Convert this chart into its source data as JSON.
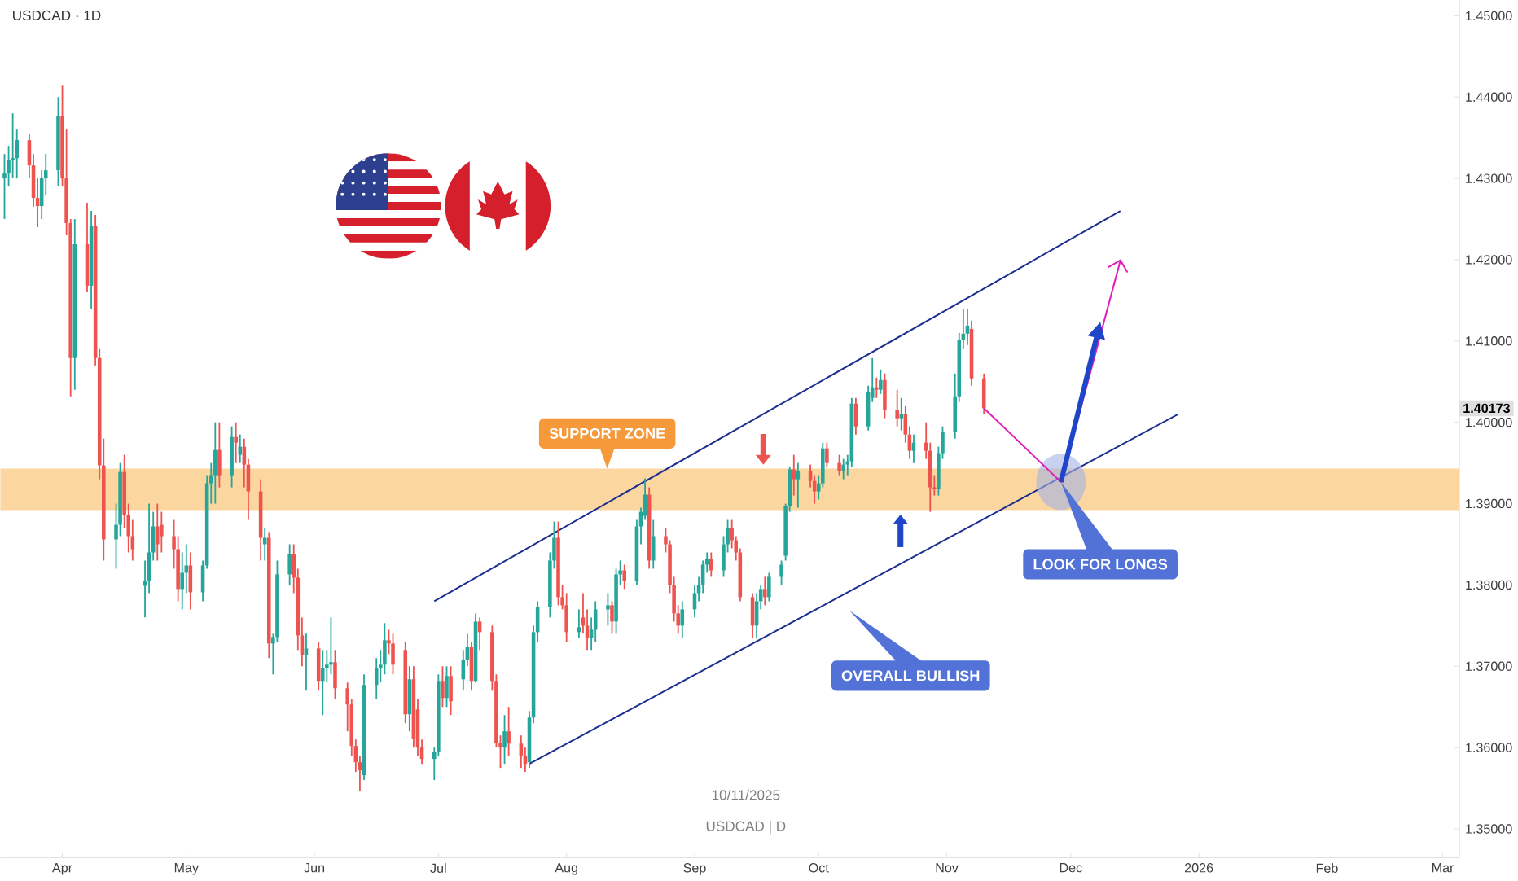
{
  "chart_data": {
    "type": "candlestick",
    "title": "USDCAD · 1D",
    "x": [
      "2025-03-18",
      "2025-03-19",
      "2025-03-20",
      "2025-03-21",
      "2025-03-24",
      "2025-03-25",
      "2025-03-26",
      "2025-03-27",
      "2025-03-28",
      "2025-03-31",
      "2025-04-01",
      "2025-04-02",
      "2025-04-03",
      "2025-04-04",
      "2025-04-07",
      "2025-04-08",
      "2025-04-09",
      "2025-04-10",
      "2025-04-11",
      "2025-04-14",
      "2025-04-15",
      "2025-04-16",
      "2025-04-17",
      "2025-04-18",
      "2025-04-21",
      "2025-04-22",
      "2025-04-23",
      "2025-04-24",
      "2025-04-25",
      "2025-04-28",
      "2025-04-29",
      "2025-04-30",
      "2025-05-01",
      "2025-05-02",
      "2025-05-05",
      "2025-05-06",
      "2025-05-07",
      "2025-05-08",
      "2025-05-09",
      "2025-05-12",
      "2025-05-13",
      "2025-05-14",
      "2025-05-15",
      "2025-05-16",
      "2025-05-19",
      "2025-05-20",
      "2025-05-21",
      "2025-05-22",
      "2025-05-23",
      "2025-05-26",
      "2025-05-27",
      "2025-05-28",
      "2025-05-29",
      "2025-05-30",
      "2025-06-02",
      "2025-06-03",
      "2025-06-04",
      "2025-06-05",
      "2025-06-06",
      "2025-06-09",
      "2025-06-10",
      "2025-06-11",
      "2025-06-12",
      "2025-06-13",
      "2025-06-16",
      "2025-06-17",
      "2025-06-18",
      "2025-06-19",
      "2025-06-20",
      "2025-06-23",
      "2025-06-24",
      "2025-06-25",
      "2025-06-26",
      "2025-06-27",
      "2025-06-30",
      "2025-07-01",
      "2025-07-02",
      "2025-07-03",
      "2025-07-04",
      "2025-07-07",
      "2025-07-08",
      "2025-07-09",
      "2025-07-10",
      "2025-07-11",
      "2025-07-14",
      "2025-07-15",
      "2025-07-16",
      "2025-07-17",
      "2025-07-18",
      "2025-07-21",
      "2025-07-22",
      "2025-07-23",
      "2025-07-24",
      "2025-07-25",
      "2025-07-28",
      "2025-07-29",
      "2025-07-30",
      "2025-07-31",
      "2025-08-01",
      "2025-08-04",
      "2025-08-05",
      "2025-08-06",
      "2025-08-07",
      "2025-08-08",
      "2025-08-11",
      "2025-08-12",
      "2025-08-13",
      "2025-08-14",
      "2025-08-15",
      "2025-08-18",
      "2025-08-19",
      "2025-08-20",
      "2025-08-21",
      "2025-08-22",
      "2025-08-25",
      "2025-08-26",
      "2025-08-27",
      "2025-08-28",
      "2025-08-29",
      "2025-09-01",
      "2025-09-02",
      "2025-09-03",
      "2025-09-04",
      "2025-09-05",
      "2025-09-08",
      "2025-09-09",
      "2025-09-10",
      "2025-09-11",
      "2025-09-12",
      "2025-09-15",
      "2025-09-16",
      "2025-09-17",
      "2025-09-18",
      "2025-09-19",
      "2025-09-22",
      "2025-09-23",
      "2025-09-24",
      "2025-09-25",
      "2025-09-26",
      "2025-09-29",
      "2025-09-30",
      "2025-10-01",
      "2025-10-02",
      "2025-10-03",
      "2025-10-06",
      "2025-10-07",
      "2025-10-08",
      "2025-10-09",
      "2025-10-10",
      "2025-10-13",
      "2025-10-14",
      "2025-10-15",
      "2025-10-16",
      "2025-10-17",
      "2025-10-20",
      "2025-10-21",
      "2025-10-22",
      "2025-10-23",
      "2025-10-24",
      "2025-10-27",
      "2025-10-28",
      "2025-10-29",
      "2025-10-30",
      "2025-10-31",
      "2025-11-03",
      "2025-11-04",
      "2025-11-05",
      "2025-11-06",
      "2025-11-07",
      "2025-11-10"
    ],
    "ohlc": [
      [
        1.43,
        1.433,
        1.425,
        1.4306
      ],
      [
        1.4306,
        1.434,
        1.429,
        1.4323
      ],
      [
        1.4323,
        1.438,
        1.43,
        1.4325
      ],
      [
        1.4325,
        1.436,
        1.43,
        1.4347
      ],
      [
        1.4347,
        1.4355,
        1.43,
        1.4316
      ],
      [
        1.4316,
        1.433,
        1.4265,
        1.4276
      ],
      [
        1.4276,
        1.43,
        1.424,
        1.4266
      ],
      [
        1.4266,
        1.431,
        1.425,
        1.43
      ],
      [
        1.43,
        1.433,
        1.428,
        1.431
      ],
      [
        1.431,
        1.44,
        1.429,
        1.4377
      ],
      [
        1.4377,
        1.4414,
        1.429,
        1.43
      ],
      [
        1.43,
        1.436,
        1.423,
        1.4245
      ],
      [
        1.4245,
        1.425,
        1.4032,
        1.4079
      ],
      [
        1.4079,
        1.425,
        1.404,
        1.4219
      ],
      [
        1.4219,
        1.427,
        1.416,
        1.4168
      ],
      [
        1.4168,
        1.426,
        1.414,
        1.4241
      ],
      [
        1.4241,
        1.4255,
        1.407,
        1.4079
      ],
      [
        1.4079,
        1.409,
        1.393,
        1.3947
      ],
      [
        1.3947,
        1.398,
        1.383,
        1.3856
      ],
      [
        1.3856,
        1.39,
        1.382,
        1.3874
      ],
      [
        1.3874,
        1.395,
        1.386,
        1.3939
      ],
      [
        1.3939,
        1.396,
        1.387,
        1.3886
      ],
      [
        1.3886,
        1.39,
        1.384,
        1.386
      ],
      [
        1.386,
        1.388,
        1.383,
        1.3844
      ],
      [
        1.3799,
        1.383,
        1.376,
        1.3805
      ],
      [
        1.3805,
        1.39,
        1.379,
        1.384
      ],
      [
        1.384,
        1.389,
        1.383,
        1.3872
      ],
      [
        1.3872,
        1.39,
        1.383,
        1.385
      ],
      [
        1.3874,
        1.389,
        1.384,
        1.386
      ],
      [
        1.386,
        1.388,
        1.382,
        1.3844
      ],
      [
        1.3844,
        1.386,
        1.378,
        1.3795
      ],
      [
        1.3795,
        1.384,
        1.377,
        1.3815
      ],
      [
        1.3815,
        1.385,
        1.379,
        1.3824
      ],
      [
        1.3824,
        1.384,
        1.377,
        1.3791
      ],
      [
        1.3791,
        1.383,
        1.378,
        1.3824
      ],
      [
        1.3824,
        1.3935,
        1.382,
        1.3925
      ],
      [
        1.3925,
        1.395,
        1.39,
        1.3935
      ],
      [
        1.3935,
        1.4,
        1.39,
        1.3966
      ],
      [
        1.3966,
        1.4,
        1.392,
        1.3935
      ],
      [
        1.3935,
        1.3995,
        1.392,
        1.3982
      ],
      [
        1.3982,
        1.4,
        1.395,
        1.3975
      ],
      [
        1.396,
        1.3985,
        1.395,
        1.397
      ],
      [
        1.397,
        1.398,
        1.392,
        1.3948
      ],
      [
        1.3948,
        1.3955,
        1.388,
        1.3915
      ],
      [
        1.3915,
        1.393,
        1.383,
        1.3858
      ],
      [
        1.385,
        1.387,
        1.383,
        1.3858
      ],
      [
        1.3858,
        1.3865,
        1.371,
        1.3728
      ],
      [
        1.3728,
        1.374,
        1.369,
        1.3736
      ],
      [
        1.3736,
        1.383,
        1.373,
        1.3813
      ],
      [
        1.3813,
        1.385,
        1.38,
        1.3838
      ],
      [
        1.3838,
        1.385,
        1.379,
        1.3809
      ],
      [
        1.3809,
        1.382,
        1.372,
        1.3738
      ],
      [
        1.3738,
        1.376,
        1.37,
        1.3714
      ],
      [
        1.3714,
        1.374,
        1.367,
        1.3722
      ],
      [
        1.3722,
        1.373,
        1.367,
        1.3682
      ],
      [
        1.3682,
        1.372,
        1.364,
        1.3698
      ],
      [
        1.3698,
        1.372,
        1.368,
        1.3702
      ],
      [
        1.3702,
        1.376,
        1.369,
        1.3705
      ],
      [
        1.3705,
        1.372,
        1.366,
        1.3673
      ],
      [
        1.3673,
        1.368,
        1.362,
        1.3653
      ],
      [
        1.3653,
        1.366,
        1.359,
        1.3602
      ],
      [
        1.3602,
        1.361,
        1.357,
        1.3582
      ],
      [
        1.3582,
        1.359,
        1.3546,
        1.3572
      ],
      [
        1.3566,
        1.369,
        1.356,
        1.3677
      ],
      [
        1.3677,
        1.371,
        1.366,
        1.3698
      ],
      [
        1.3698,
        1.372,
        1.368,
        1.3702
      ],
      [
        1.3702,
        1.3753,
        1.369,
        1.3732
      ],
      [
        1.3732,
        1.3745,
        1.3715,
        1.3728
      ],
      [
        1.3728,
        1.374,
        1.369,
        1.3702
      ],
      [
        1.372,
        1.373,
        1.363,
        1.3641
      ],
      [
        1.3641,
        1.37,
        1.362,
        1.3684
      ],
      [
        1.3684,
        1.37,
        1.36,
        1.3611
      ],
      [
        1.3647,
        1.366,
        1.359,
        1.36
      ],
      [
        1.36,
        1.361,
        1.358,
        1.3586
      ],
      [
        1.3586,
        1.36,
        1.356,
        1.3595
      ],
      [
        1.3595,
        1.369,
        1.359,
        1.3682
      ],
      [
        1.3682,
        1.37,
        1.365,
        1.3661
      ],
      [
        1.3661,
        1.37,
        1.365,
        1.3688
      ],
      [
        1.3688,
        1.37,
        1.364,
        1.3657
      ],
      [
        1.3684,
        1.372,
        1.367,
        1.3708
      ],
      [
        1.3708,
        1.374,
        1.37,
        1.3724
      ],
      [
        1.3724,
        1.373,
        1.367,
        1.3682
      ],
      [
        1.3682,
        1.3765,
        1.368,
        1.3755
      ],
      [
        1.3755,
        1.376,
        1.372,
        1.3742
      ],
      [
        1.3742,
        1.375,
        1.367,
        1.3682
      ],
      [
        1.3682,
        1.369,
        1.36,
        1.3606
      ],
      [
        1.3606,
        1.3615,
        1.3575,
        1.36
      ],
      [
        1.36,
        1.364,
        1.358,
        1.362
      ],
      [
        1.362,
        1.365,
        1.359,
        1.3605
      ],
      [
        1.3605,
        1.3615,
        1.3575,
        1.359
      ],
      [
        1.359,
        1.36,
        1.357,
        1.358
      ],
      [
        1.3582,
        1.3645,
        1.3575,
        1.3637
      ],
      [
        1.3637,
        1.375,
        1.363,
        1.3742
      ],
      [
        1.3742,
        1.378,
        1.373,
        1.3773
      ],
      [
        1.3773,
        1.384,
        1.376,
        1.383
      ],
      [
        1.383,
        1.3878,
        1.382,
        1.3858
      ],
      [
        1.3858,
        1.3878,
        1.3775,
        1.3785
      ],
      [
        1.3785,
        1.38,
        1.377,
        1.3775
      ],
      [
        1.3775,
        1.379,
        1.373,
        1.3742
      ],
      [
        1.3742,
        1.377,
        1.3735,
        1.3748
      ],
      [
        1.376,
        1.379,
        1.374,
        1.375
      ],
      [
        1.375,
        1.377,
        1.372,
        1.3735
      ],
      [
        1.3735,
        1.376,
        1.372,
        1.3745
      ],
      [
        1.3745,
        1.378,
        1.373,
        1.377
      ],
      [
        1.377,
        1.379,
        1.375,
        1.3775
      ],
      [
        1.3775,
        1.378,
        1.374,
        1.3755
      ],
      [
        1.3755,
        1.382,
        1.374,
        1.3813
      ],
      [
        1.3813,
        1.383,
        1.38,
        1.3818
      ],
      [
        1.3818,
        1.3825,
        1.3795,
        1.3805
      ],
      [
        1.3805,
        1.388,
        1.38,
        1.3872
      ],
      [
        1.3872,
        1.3895,
        1.385,
        1.389
      ],
      [
        1.3885,
        1.3931,
        1.388,
        1.3911
      ],
      [
        1.3911,
        1.392,
        1.382,
        1.383
      ],
      [
        1.383,
        1.388,
        1.382,
        1.386
      ],
      [
        1.386,
        1.387,
        1.384,
        1.385
      ],
      [
        1.385,
        1.3855,
        1.379,
        1.38
      ],
      [
        1.38,
        1.381,
        1.3755,
        1.3765
      ],
      [
        1.3765,
        1.3775,
        1.374,
        1.375
      ],
      [
        1.375,
        1.378,
        1.3735,
        1.377
      ],
      [
        1.377,
        1.38,
        1.376,
        1.379
      ],
      [
        1.379,
        1.381,
        1.378,
        1.38
      ],
      [
        1.38,
        1.383,
        1.379,
        1.3825
      ],
      [
        1.3825,
        1.384,
        1.3815,
        1.3832
      ],
      [
        1.3832,
        1.384,
        1.381,
        1.3818
      ],
      [
        1.3818,
        1.386,
        1.381,
        1.385
      ],
      [
        1.385,
        1.388,
        1.384,
        1.387
      ],
      [
        1.387,
        1.388,
        1.3845,
        1.3855
      ],
      [
        1.3855,
        1.386,
        1.383,
        1.384
      ],
      [
        1.384,
        1.3845,
        1.378,
        1.3785
      ],
      [
        1.3785,
        1.379,
        1.3734,
        1.375
      ],
      [
        1.375,
        1.379,
        1.3734,
        1.378
      ],
      [
        1.378,
        1.38,
        1.377,
        1.3795
      ],
      [
        1.3795,
        1.381,
        1.3775,
        1.3785
      ],
      [
        1.3785,
        1.3815,
        1.378,
        1.381
      ],
      [
        1.381,
        1.383,
        1.38,
        1.3825
      ],
      [
        1.3836,
        1.39,
        1.383,
        1.3897
      ],
      [
        1.3897,
        1.3945,
        1.389,
        1.3942
      ],
      [
        1.3942,
        1.396,
        1.391,
        1.393
      ],
      [
        1.393,
        1.395,
        1.3895,
        1.394
      ],
      [
        1.394,
        1.3948,
        1.392,
        1.3928
      ],
      [
        1.3928,
        1.3935,
        1.39,
        1.3915
      ],
      [
        1.3915,
        1.3935,
        1.3905,
        1.3925
      ],
      [
        1.3925,
        1.3975,
        1.392,
        1.3968
      ],
      [
        1.3968,
        1.3975,
        1.3945,
        1.395
      ],
      [
        1.395,
        1.396,
        1.3935,
        1.394
      ],
      [
        1.394,
        1.3955,
        1.393,
        1.3948
      ],
      [
        1.3948,
        1.396,
        1.3935,
        1.3952
      ],
      [
        1.3952,
        1.403,
        1.3945,
        1.4023
      ],
      [
        1.4023,
        1.403,
        1.3985,
        1.3995
      ],
      [
        1.3995,
        1.4045,
        1.399,
        1.4037
      ],
      [
        1.403,
        1.4079,
        1.4025,
        1.4043
      ],
      [
        1.4043,
        1.4055,
        1.403,
        1.404
      ],
      [
        1.404,
        1.4065,
        1.4035,
        1.4052
      ],
      [
        1.4052,
        1.406,
        1.4005,
        1.4015
      ],
      [
        1.4015,
        1.404,
        1.3995,
        1.4005
      ],
      [
        1.4005,
        1.403,
        1.399,
        1.401
      ],
      [
        1.401,
        1.402,
        1.3975,
        1.3985
      ],
      [
        1.3985,
        1.3995,
        1.3955,
        1.3965
      ],
      [
        1.3965,
        1.3985,
        1.395,
        1.3975
      ],
      [
        1.3975,
        1.4,
        1.3955,
        1.3965
      ],
      [
        1.3965,
        1.3975,
        1.389,
        1.392
      ],
      [
        1.392,
        1.3935,
        1.391,
        1.3918
      ],
      [
        1.3918,
        1.397,
        1.391,
        1.3962
      ],
      [
        1.3962,
        1.3995,
        1.3955,
        1.3988
      ],
      [
        1.3988,
        1.406,
        1.398,
        1.4032
      ],
      [
        1.4032,
        1.411,
        1.4025,
        1.4101
      ],
      [
        1.4101,
        1.414,
        1.409,
        1.4109
      ],
      [
        1.4109,
        1.414,
        1.4095,
        1.4119
      ],
      [
        1.4115,
        1.4125,
        1.4045,
        1.4054
      ],
      [
        1.4054,
        1.406,
        1.401,
        1.40173
      ]
    ],
    "series": [
      {
        "type": "line",
        "x": [
          "2025-06-30",
          "2025-12-13"
        ],
        "values": [
          1.378,
          1.426
        ],
        "color": "#1c2f8f"
      },
      {
        "type": "line",
        "x": [
          "2025-07-23",
          "2025-12-27"
        ],
        "values": [
          1.358,
          1.401
        ],
        "color": "#1c2f8f"
      }
    ],
    "bands": [
      {
        "axis": "y",
        "from": 1.3892,
        "to": 1.3943,
        "label": "SUPPORT ZONE",
        "color": "#fbd69e"
      }
    ],
    "annotations": [
      "LOOK FOR LONGS",
      "OVERALL BULLISH",
      "10/11/2025",
      "USDCAD | D",
      "1.40173"
    ],
    "xlim": [
      "2025-03-17",
      "2026-03-05"
    ],
    "xticks": [
      {
        "value": "2025-04-01",
        "label": "Apr"
      },
      {
        "value": "2025-05-01",
        "label": "May"
      },
      {
        "value": "2025-06-01",
        "label": "Jun"
      },
      {
        "value": "2025-07-01",
        "label": "Jul"
      },
      {
        "value": "2025-08-01",
        "label": "Aug"
      },
      {
        "value": "2025-09-01",
        "label": "Sep"
      },
      {
        "value": "2025-10-01",
        "label": "Oct"
      },
      {
        "value": "2025-11-01",
        "label": "Nov"
      },
      {
        "value": "2025-12-01",
        "label": "Dec"
      },
      {
        "value": "2026-01-01",
        "label": "2026"
      },
      {
        "value": "2026-02-01",
        "label": "Feb"
      },
      {
        "value": "2026-03-01",
        "label": "Mar"
      }
    ],
    "ylim": [
      1.3465,
      1.4519
    ],
    "yticks": [
      {
        "value": 1.35,
        "label": "1.35000"
      },
      {
        "value": 1.36,
        "label": "1.36000"
      },
      {
        "value": 1.37,
        "label": "1.37000"
      },
      {
        "value": 1.38,
        "label": "1.38000"
      },
      {
        "value": 1.39,
        "label": "1.39000"
      },
      {
        "value": 1.4,
        "label": "1.40000"
      },
      {
        "value": 1.41,
        "label": "1.41000"
      },
      {
        "value": 1.42,
        "label": "1.42000"
      },
      {
        "value": 1.43,
        "label": "1.43000"
      },
      {
        "value": 1.44,
        "label": "1.44000"
      },
      {
        "value": 1.45,
        "label": "1.45000"
      }
    ]
  }
}
